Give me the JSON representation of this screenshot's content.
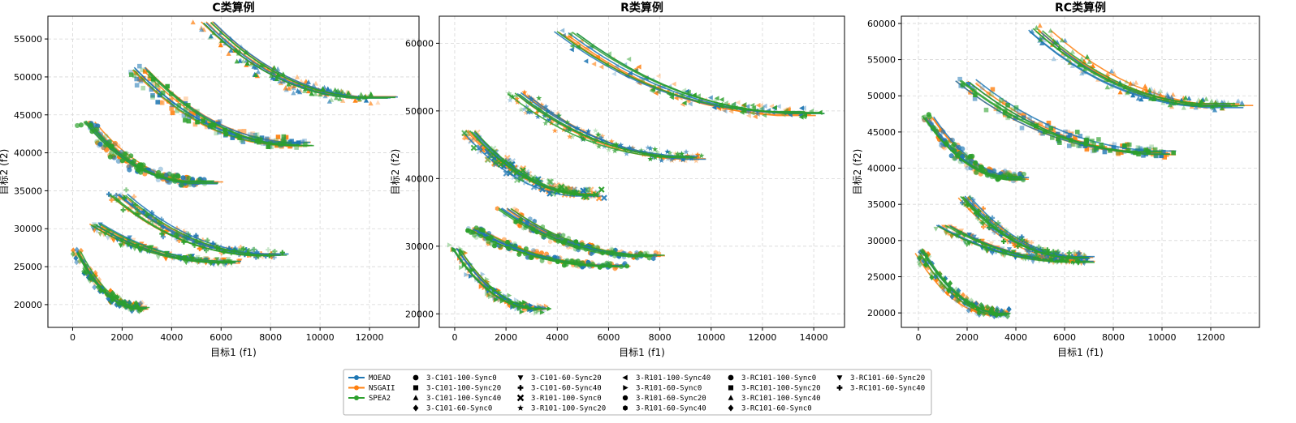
{
  "chart_data": [
    {
      "type": "scatter",
      "title": "C类算例",
      "xlabel": "目标1 (f1)",
      "ylabel": "目标2 (f2)",
      "xlim": [
        -1000,
        14000
      ],
      "ylim": [
        17000,
        58000
      ],
      "xticks": [
        0,
        2000,
        4000,
        6000,
        8000,
        10000,
        12000
      ],
      "yticks": [
        20000,
        25000,
        30000,
        35000,
        40000,
        45000,
        50000,
        55000
      ],
      "grid": true,
      "clusters": [
        {
          "instance": "3-C101-100-Sync0",
          "marker": "circle",
          "from": [
            500,
            44000
          ],
          "to": [
            5200,
            36000
          ],
          "tail": 1200
        },
        {
          "instance": "3-C101-100-Sync20",
          "marker": "square",
          "from": [
            2500,
            51000
          ],
          "to": [
            9200,
            41000
          ],
          "tail": 1000
        },
        {
          "instance": "3-C101-100-Sync40",
          "marker": "triangle-up",
          "from": [
            5200,
            57000
          ],
          "to": [
            12200,
            47000
          ],
          "tail": 1500
        },
        {
          "instance": "3-C101-60-Sync0",
          "marker": "diamond",
          "from": [
            100,
            27000
          ],
          "to": [
            2800,
            19500
          ],
          "tail": 500
        },
        {
          "instance": "3-C101-60-Sync20",
          "marker": "triangle-down",
          "from": [
            800,
            30500
          ],
          "to": [
            6500,
            25500
          ],
          "tail": 800
        },
        {
          "instance": "3-C101-60-Sync40",
          "marker": "plus",
          "from": [
            1700,
            34500
          ],
          "to": [
            8200,
            26500
          ],
          "tail": 1000
        }
      ]
    },
    {
      "type": "scatter",
      "title": "R类算例",
      "xlabel": "目标1 (f1)",
      "ylabel": "目标2 (f2)",
      "xlim": [
        -600,
        15200
      ],
      "ylim": [
        18000,
        64000
      ],
      "xticks": [
        0,
        2000,
        4000,
        6000,
        8000,
        10000,
        12000,
        14000
      ],
      "yticks": [
        20000,
        30000,
        40000,
        50000,
        60000
      ],
      "grid": true,
      "clusters": [
        {
          "instance": "3-R101-100-Sync0",
          "marker": "x",
          "from": [
            500,
            47000
          ],
          "to": [
            5500,
            37500
          ],
          "tail": 600
        },
        {
          "instance": "3-R101-100-Sync20",
          "marker": "star",
          "from": [
            2300,
            52500
          ],
          "to": [
            9500,
            43000
          ],
          "tail": 800
        },
        {
          "instance": "3-R101-100-Sync40",
          "marker": "triangle-left",
          "from": [
            4200,
            61500
          ],
          "to": [
            13800,
            49500
          ],
          "tail": 1500
        },
        {
          "instance": "3-R101-60-Sync0",
          "marker": "triangle-right",
          "from": [
            0,
            29500
          ],
          "to": [
            3500,
            20500
          ],
          "tail": 500
        },
        {
          "instance": "3-R101-60-Sync20",
          "marker": "octagon",
          "from": [
            600,
            32500
          ],
          "to": [
            6500,
            27000
          ],
          "tail": 800
        },
        {
          "instance": "3-R101-60-Sync40",
          "marker": "hexagon",
          "from": [
            1800,
            35500
          ],
          "to": [
            7800,
            28500
          ],
          "tail": 900
        }
      ]
    },
    {
      "type": "scatter",
      "title": "RC类算例",
      "xlabel": "目标1 (f1)",
      "ylabel": "目标2 (f2)",
      "xlim": [
        -700,
        14000
      ],
      "ylim": [
        18000,
        61000
      ],
      "xticks": [
        0,
        2000,
        4000,
        6000,
        8000,
        10000,
        12000
      ],
      "yticks": [
        20000,
        25000,
        30000,
        35000,
        40000,
        45000,
        50000,
        55000,
        60000
      ],
      "grid": true,
      "clusters": [
        {
          "instance": "3-RC101-100-Sync0",
          "marker": "circle",
          "from": [
            300,
            47000
          ],
          "to": [
            4200,
            38500
          ],
          "tail": 600
        },
        {
          "instance": "3-RC101-100-Sync20",
          "marker": "square",
          "from": [
            1800,
            52000
          ],
          "to": [
            10300,
            42000
          ],
          "tail": 1000
        },
        {
          "instance": "3-RC101-100-Sync40",
          "marker": "triangle-up",
          "from": [
            4800,
            59000
          ],
          "to": [
            12800,
            48500
          ],
          "tail": 1500
        },
        {
          "instance": "3-RC101-60-Sync0",
          "marker": "diamond",
          "from": [
            0,
            28500
          ],
          "to": [
            3600,
            19800
          ],
          "tail": 500
        },
        {
          "instance": "3-RC101-60-Sync20",
          "marker": "triangle-down",
          "from": [
            900,
            32000
          ],
          "to": [
            6800,
            27000
          ],
          "tail": 900
        },
        {
          "instance": "3-RC101-60-Sync40",
          "marker": "plus",
          "from": [
            1800,
            36000
          ],
          "to": [
            6800,
            27500
          ],
          "tail": 900
        }
      ]
    }
  ],
  "series": [
    {
      "name": "MOEAD",
      "color": "#1f77b4"
    },
    {
      "name": "NSGAII",
      "color": "#ff7f0e"
    },
    {
      "name": "SPEA2",
      "color": "#2ca02c"
    }
  ],
  "legend": {
    "placement": "bottom-center",
    "algorithms": [
      "MOEAD",
      "NSGAII",
      "SPEA2"
    ],
    "instances": [
      {
        "label": "3-C101-100-Sync0",
        "marker": "circle"
      },
      {
        "label": "3-C101-100-Sync20",
        "marker": "square"
      },
      {
        "label": "3-C101-100-Sync40",
        "marker": "triangle-up"
      },
      {
        "label": "3-C101-60-Sync0",
        "marker": "diamond"
      },
      {
        "label": "3-C101-60-Sync20",
        "marker": "triangle-down"
      },
      {
        "label": "3-C101-60-Sync40",
        "marker": "plus"
      },
      {
        "label": "3-R101-100-Sync0",
        "marker": "x"
      },
      {
        "label": "3-R101-100-Sync20",
        "marker": "star"
      },
      {
        "label": "3-R101-100-Sync40",
        "marker": "triangle-left"
      },
      {
        "label": "3-R101-60-Sync0",
        "marker": "triangle-right"
      },
      {
        "label": "3-R101-60-Sync20",
        "marker": "octagon"
      },
      {
        "label": "3-R101-60-Sync40",
        "marker": "hexagon"
      },
      {
        "label": "3-RC101-100-Sync0",
        "marker": "circle"
      },
      {
        "label": "3-RC101-100-Sync20",
        "marker": "square"
      },
      {
        "label": "3-RC101-100-Sync40",
        "marker": "triangle-up"
      },
      {
        "label": "3-RC101-60-Sync0",
        "marker": "diamond"
      },
      {
        "label": "3-RC101-60-Sync20",
        "marker": "triangle-down"
      },
      {
        "label": "3-RC101-60-Sync40",
        "marker": "plus"
      }
    ]
  }
}
